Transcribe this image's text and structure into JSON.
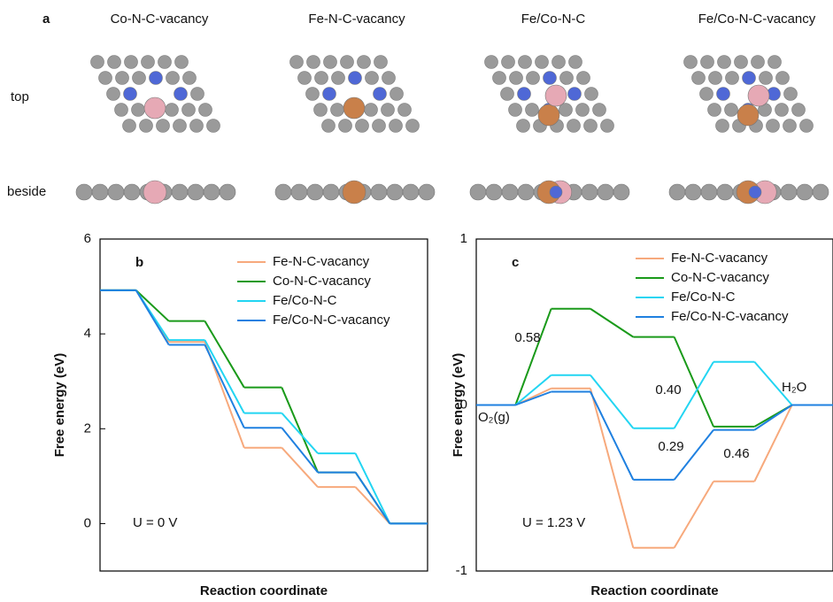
{
  "panel_a": {
    "label": "a",
    "titles": [
      "Co-N-C-vacancy",
      "Fe-N-C-vacancy",
      "Fe/Co-N-C",
      "Fe/Co-N-C-vacancy"
    ],
    "rows": [
      "top",
      "beside"
    ]
  },
  "chart_data": [
    {
      "type": "step",
      "panel_label": "b",
      "xlabel": "Reaction coordinate",
      "ylabel": "Free energy (eV)",
      "annotations": [
        "U = 0 V"
      ],
      "ylim": [
        -1,
        6
      ],
      "yticks": [
        0,
        2,
        4,
        6
      ],
      "series": [
        {
          "name": "Fe-N-C-vacancy",
          "color": "#f7a97c",
          "values": [
            4.92,
            3.83,
            1.6,
            0.77,
            0
          ]
        },
        {
          "name": "Co-N-C-vacancy",
          "color": "#1a9a1a",
          "values": [
            4.92,
            4.27,
            2.87,
            1.08,
            0
          ]
        },
        {
          "name": "Fe/Co-N-C",
          "color": "#22d5f2",
          "values": [
            4.92,
            3.87,
            2.33,
            1.48,
            0
          ]
        },
        {
          "name": "Fe/Co-N-C-vacancy",
          "color": "#1f80e0",
          "values": [
            4.92,
            3.77,
            2.02,
            1.08,
            0
          ]
        }
      ]
    },
    {
      "type": "step",
      "panel_label": "c",
      "xlabel": "Reaction coordinate",
      "ylabel": "Free energy (eV)",
      "annotations": [
        "U = 1.23 V",
        "O₂(g)",
        "H₂O",
        "0.58",
        "0.40",
        "0.29",
        "0.46"
      ],
      "ylim": [
        -1,
        1
      ],
      "yticks": [
        -1,
        0,
        1
      ],
      "series": [
        {
          "name": "Fe-N-C-vacancy",
          "color": "#f7a97c",
          "values": [
            0,
            0.1,
            -0.86,
            -0.46,
            0
          ]
        },
        {
          "name": "Co-N-C-vacancy",
          "color": "#1a9a1a",
          "values": [
            0,
            0.58,
            0.41,
            -0.13,
            0
          ]
        },
        {
          "name": "Fe/Co-N-C",
          "color": "#22d5f2",
          "values": [
            0,
            0.18,
            -0.14,
            0.26,
            0
          ]
        },
        {
          "name": "Fe/Co-N-C-vacancy",
          "color": "#1f80e0",
          "values": [
            0,
            0.08,
            -0.45,
            -0.15,
            0
          ]
        }
      ]
    }
  ]
}
